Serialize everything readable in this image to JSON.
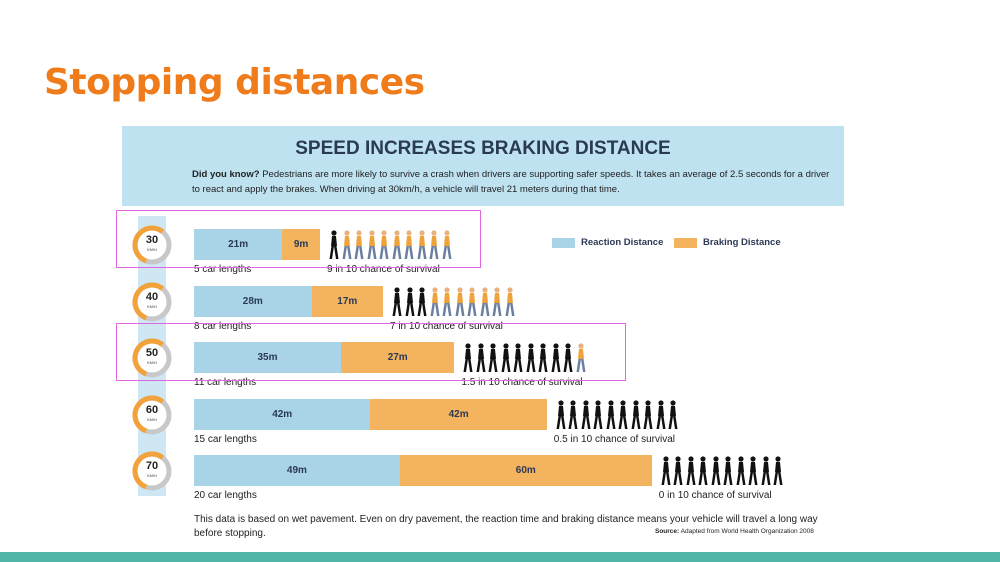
{
  "slide": {
    "title": "Stopping distances"
  },
  "infographic": {
    "title": "SPEED INCREASES BRAKING DISTANCE",
    "intro_bold": "Did you know?",
    "intro_text": "Pedestrians are more likely to survive a crash when drivers are supporting safer speeds. It takes an average of 2.5 seconds for a driver to react and apply the brakes. When driving at 30km/h, a vehicle will travel 21 meters during that time.",
    "speed_unit": "KM/H",
    "footnote": "This data is based on wet pavement. Even on dry pavement, the reaction time and braking distance means your vehicle will travel a long way before stopping.",
    "source_label": "Source:",
    "source_text": "Adapted from World Health Organization 2008"
  },
  "colors": {
    "title": "#ef7b1a",
    "reaction": "#a9d4e7",
    "braking": "#f4b35f",
    "bottom_bar": "#4fb3a6",
    "highlight": "#e066e0",
    "header_bg": "#bfe2f0"
  },
  "chart_data": {
    "type": "bar",
    "orientation": "horizontal",
    "stacked": true,
    "categories": [
      "30",
      "40",
      "50",
      "60",
      "70"
    ],
    "series": [
      {
        "name": "Reaction Distance",
        "values": [
          21,
          28,
          35,
          42,
          49
        ]
      },
      {
        "name": "Braking Distance",
        "values": [
          9,
          17,
          27,
          42,
          60
        ]
      }
    ],
    "bar_value_labels": {
      "reaction": [
        "21m",
        "28m",
        "35m",
        "42m",
        "49m"
      ],
      "braking": [
        "9m",
        "17m",
        "27m",
        "42m",
        "60m"
      ]
    },
    "car_lengths": [
      "5 car lengths",
      "8 car lengths",
      "11 car lengths",
      "15 car lengths",
      "20 car lengths"
    ],
    "survival_labels": [
      "9 in 10 chance of survival",
      "7  in 10 chance of survival",
      "1.5 in 10 chance of survival",
      "0.5 in 10 chance of survival",
      "0 in 10 chance of survival"
    ],
    "survival_out_of_10": [
      9,
      7,
      1.5,
      0.5,
      0
    ],
    "legend_position": "top-right",
    "highlighted_rows": [
      "30",
      "50"
    ]
  }
}
